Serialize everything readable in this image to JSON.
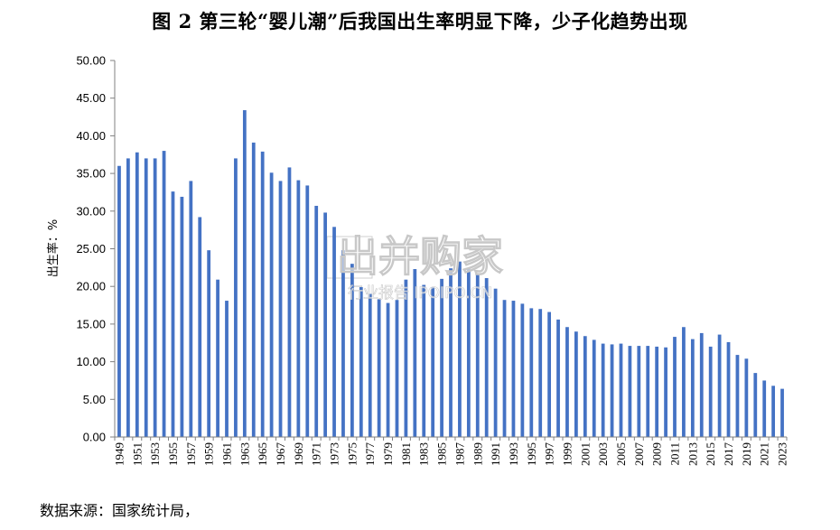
{
  "title": "图 2  第三轮“婴儿潮”后我国出生率明显下降，少子化趋势出现",
  "source": "数据来源：国家统计局，",
  "watermark": {
    "main": "出并购家",
    "sub": "行业报告 IPOIPO.CN"
  },
  "chart_data": {
    "type": "bar",
    "title": "图 2  第三轮“婴儿潮”后我国出生率明显下降，少子化趋势出现",
    "ylabel": "出生率：%",
    "xlabel": "",
    "ylim": [
      0,
      50
    ],
    "y_ticks": [
      "0.00",
      "5.00",
      "10.00",
      "15.00",
      "20.00",
      "25.00",
      "30.00",
      "35.00",
      "40.00",
      "45.00",
      "50.00"
    ],
    "bar_color": "#4472C4",
    "grid": false,
    "legend": "none",
    "categories": [
      "1949",
      "1950",
      "1951",
      "1952",
      "1953",
      "1954",
      "1955",
      "1956",
      "1957",
      "1958",
      "1959",
      "1960",
      "1961",
      "1962",
      "1963",
      "1964",
      "1965",
      "1966",
      "1967",
      "1968",
      "1969",
      "1970",
      "1971",
      "1972",
      "1973",
      "1974",
      "1975",
      "1976",
      "1977",
      "1978",
      "1979",
      "1980",
      "1981",
      "1982",
      "1983",
      "1984",
      "1985",
      "1986",
      "1987",
      "1988",
      "1989",
      "1990",
      "1991",
      "1992",
      "1993",
      "1994",
      "1995",
      "1996",
      "1997",
      "1998",
      "1999",
      "2000",
      "2001",
      "2002",
      "2003",
      "2004",
      "2005",
      "2006",
      "2007",
      "2008",
      "2009",
      "2010",
      "2011",
      "2012",
      "2013",
      "2014",
      "2015",
      "2016",
      "2017",
      "2018",
      "2019",
      "2020",
      "2021",
      "2022",
      "2023"
    ],
    "x_tick_labels": [
      "1949",
      "1951",
      "1953",
      "1955",
      "1957",
      "1959",
      "1961",
      "1963",
      "1965",
      "1967",
      "1969",
      "1971",
      "1973",
      "1975",
      "1977",
      "1979",
      "1981",
      "1983",
      "1985",
      "1987",
      "1989",
      "1991",
      "1993",
      "1995",
      "1997",
      "1999",
      "2001",
      "2003",
      "2005",
      "2007",
      "2009",
      "2011",
      "2013",
      "2015",
      "2017",
      "2019",
      "2021",
      "2023"
    ],
    "values": [
      36.0,
      37.0,
      37.8,
      37.0,
      37.0,
      38.0,
      32.6,
      31.9,
      34.0,
      29.2,
      24.8,
      20.9,
      18.1,
      37.0,
      43.4,
      39.1,
      37.9,
      35.1,
      34.0,
      35.8,
      34.1,
      33.4,
      30.7,
      29.8,
      27.9,
      24.8,
      23.0,
      19.9,
      19.0,
      18.3,
      17.8,
      18.2,
      20.9,
      22.3,
      20.2,
      19.9,
      21.0,
      22.4,
      23.3,
      22.4,
      21.6,
      21.1,
      19.7,
      18.2,
      18.1,
      17.7,
      17.1,
      17.0,
      16.6,
      15.6,
      14.6,
      14.0,
      13.4,
      12.9,
      12.4,
      12.3,
      12.4,
      12.1,
      12.1,
      12.1,
      12.0,
      11.9,
      13.3,
      14.6,
      13.0,
      13.8,
      12.0,
      13.6,
      12.6,
      10.9,
      10.4,
      8.5,
      7.5,
      6.8,
      6.4
    ]
  }
}
